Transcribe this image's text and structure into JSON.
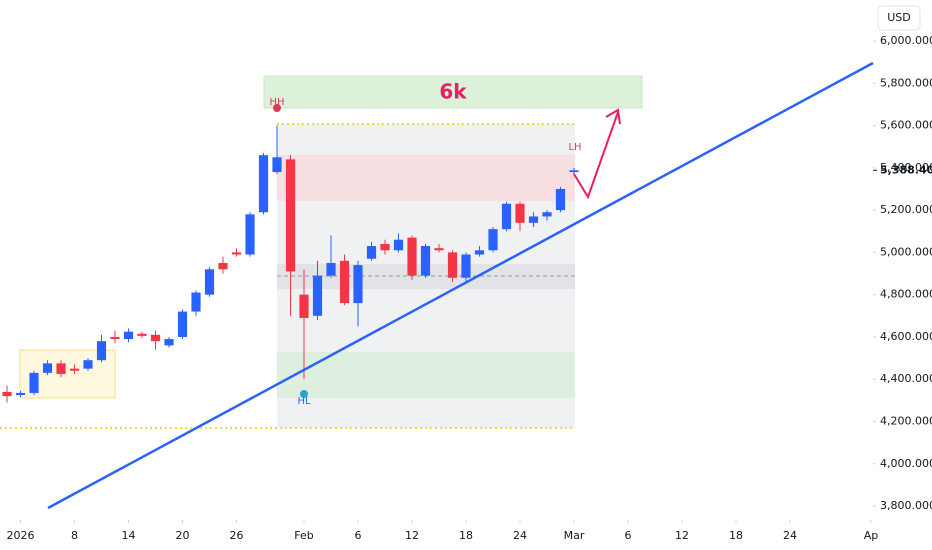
{
  "chart_data": {
    "type": "candlestick",
    "currency": "USD",
    "annotations": {
      "target": "6k",
      "high": "HH",
      "low": "HL",
      "lower_high": "LH"
    },
    "last_price": {
      "value": 5388.4,
      "label": "5,388.400"
    },
    "up_color": "#2962ff",
    "down_color": "#f23645",
    "x": [
      0,
      1,
      2,
      3,
      4,
      5,
      6,
      7,
      8,
      9,
      10,
      11,
      12,
      13,
      14,
      15,
      16,
      17,
      18,
      19,
      20,
      21,
      22,
      23,
      24,
      25,
      26,
      27,
      28,
      29,
      30,
      31,
      32,
      33,
      34,
      35,
      36,
      37,
      38,
      39,
      40,
      41,
      42
    ],
    "open": [
      4340,
      4325,
      4335,
      4430,
      4475,
      4450,
      4450,
      4490,
      4600,
      4590,
      4615,
      4610,
      4560,
      4600,
      4720,
      4800,
      4950,
      5000,
      4990,
      5190,
      5380,
      5440,
      4800,
      4700,
      4890,
      4960,
      4760,
      4970,
      5040,
      5010,
      5070,
      4890,
      5020,
      5000,
      4880,
      4990,
      5010,
      5110,
      5230,
      5140,
      5170,
      5200,
      5380
    ],
    "high": [
      4370,
      4345,
      4440,
      4490,
      4490,
      4470,
      4500,
      4610,
      4630,
      4640,
      4625,
      4630,
      4600,
      4730,
      4820,
      4930,
      4980,
      5020,
      5190,
      5470,
      5600,
      5460,
      4920,
      4960,
      5080,
      4990,
      4960,
      5050,
      5060,
      5090,
      5080,
      5040,
      5040,
      5010,
      5000,
      5030,
      5120,
      5240,
      5240,
      5190,
      5200,
      5310,
      5400
    ],
    "low": [
      4290,
      4315,
      4325,
      4420,
      4410,
      4425,
      4440,
      4480,
      4570,
      4575,
      4595,
      4540,
      4550,
      4590,
      4700,
      4790,
      4900,
      4980,
      4980,
      5180,
      5370,
      4700,
      4400,
      4680,
      4880,
      4750,
      4650,
      4960,
      4990,
      5000,
      4870,
      4880,
      5000,
      4860,
      4860,
      4980,
      5000,
      5100,
      5100,
      5120,
      5150,
      5190,
      5370
    ],
    "close": [
      4320,
      4335,
      4430,
      4475,
      4425,
      4440,
      4490,
      4580,
      4590,
      4625,
      4605,
      4580,
      4590,
      4720,
      4810,
      4920,
      4920,
      4990,
      5180,
      5460,
      5450,
      4910,
      4690,
      4890,
      4950,
      4760,
      4940,
      5030,
      5010,
      5060,
      4890,
      5030,
      5010,
      4880,
      4990,
      5010,
      5110,
      5230,
      5140,
      5170,
      5190,
      5300,
      5388.4
    ],
    "xlim": [
      -0.52,
      64.15
    ],
    "xticks": [
      {
        "value": 1,
        "label": "2026"
      },
      {
        "value": 5,
        "label": "8"
      },
      {
        "value": 9,
        "label": "14"
      },
      {
        "value": 13,
        "label": "20"
      },
      {
        "value": 17,
        "label": "26"
      },
      {
        "value": 22,
        "label": "Feb"
      },
      {
        "value": 26,
        "label": "6"
      },
      {
        "value": 30,
        "label": "12"
      },
      {
        "value": 34,
        "label": "18"
      },
      {
        "value": 38,
        "label": "24"
      },
      {
        "value": 42,
        "label": "Mar"
      },
      {
        "value": 46,
        "label": "6"
      },
      {
        "value": 50,
        "label": "12"
      },
      {
        "value": 54,
        "label": "18"
      },
      {
        "value": 58,
        "label": "24"
      },
      {
        "value": 64,
        "label": "Ap"
      }
    ],
    "ylim": [
      3734,
      6194
    ],
    "yticks": [
      {
        "value": 3800,
        "label": "3,800.000"
      },
      {
        "value": 4000,
        "label": "4,000.000"
      },
      {
        "value": 4200,
        "label": "4,200.000"
      },
      {
        "value": 4400,
        "label": "4,400.000"
      },
      {
        "value": 4600,
        "label": "4,600.000"
      },
      {
        "value": 4800,
        "label": "4,800.000"
      },
      {
        "value": 5000,
        "label": "5,000.000"
      },
      {
        "value": 5200,
        "label": "5,200.000"
      },
      {
        "value": 5400,
        "label": "5,400.000"
      },
      {
        "value": 5600,
        "label": "5,600.000"
      },
      {
        "value": 5800,
        "label": "5,800.000"
      },
      {
        "value": 6000,
        "label": "6,000.000"
      }
    ]
  }
}
